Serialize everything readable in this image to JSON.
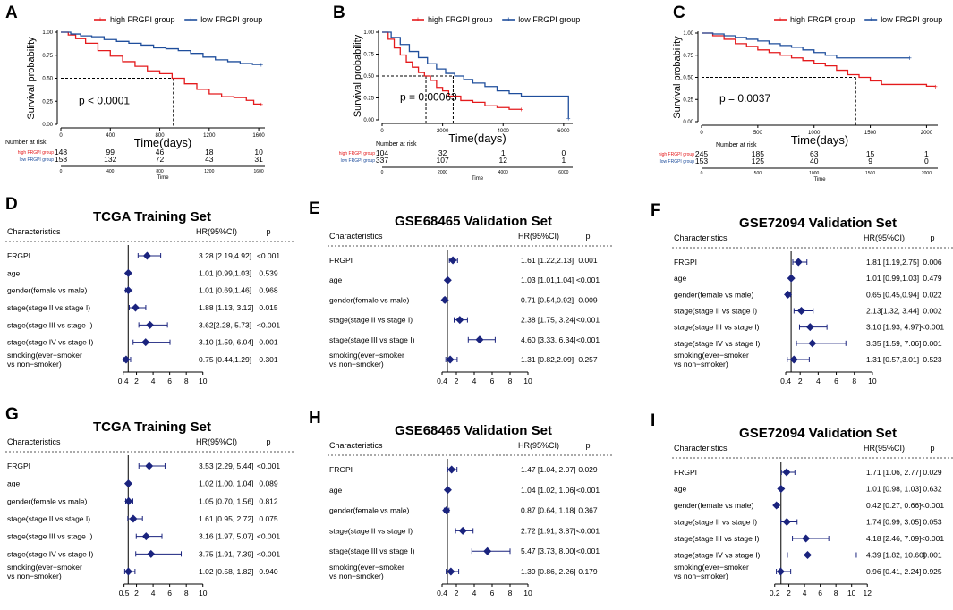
{
  "colors": {
    "high": "#e41a1c",
    "low": "#1f4e9c",
    "forest": "#1a237e"
  },
  "chart_data": [
    {
      "id": "A",
      "type": "line",
      "panel_label": "A",
      "legend": [
        "high FRGPI group",
        "low FRGPI group"
      ],
      "ylabel": "Survival probability",
      "xlabel": "Time(days)",
      "xlim": [
        0,
        1650
      ],
      "ylim": [
        0,
        1
      ],
      "xticks": [
        "0",
        "400",
        "800",
        "1200",
        "1600"
      ],
      "yticks": [
        "0.00",
        "0.25",
        "0.50",
        "0.75",
        "1.00"
      ],
      "pvalue": "p < 0.0001",
      "median": 910,
      "series": [
        {
          "name": "high FRGPI group",
          "x": [
            0,
            60,
            120,
            200,
            300,
            400,
            500,
            600,
            700,
            800,
            900,
            1000,
            1100,
            1200,
            1300,
            1400,
            1500,
            1560,
            1620
          ],
          "y": [
            1,
            0.97,
            0.93,
            0.88,
            0.8,
            0.74,
            0.68,
            0.63,
            0.58,
            0.55,
            0.5,
            0.44,
            0.38,
            0.33,
            0.3,
            0.29,
            0.26,
            0.22,
            0.22
          ]
        },
        {
          "name": "low FRGPI group",
          "x": [
            0,
            80,
            160,
            250,
            350,
            450,
            550,
            650,
            750,
            850,
            950,
            1050,
            1150,
            1250,
            1350,
            1450,
            1550,
            1620
          ],
          "y": [
            1,
            0.98,
            0.96,
            0.95,
            0.92,
            0.9,
            0.88,
            0.86,
            0.83,
            0.82,
            0.8,
            0.77,
            0.73,
            0.7,
            0.68,
            0.66,
            0.65,
            0.65
          ]
        }
      ],
      "risk_title": "Number at risk",
      "risk_xlabel": "Time",
      "risk_xticks": [
        "0",
        "400",
        "800",
        "1200",
        "1600"
      ],
      "risk_rows": [
        {
          "label": "high FRGPI group",
          "values": [
            "148",
            "99",
            "46",
            "18",
            "10"
          ]
        },
        {
          "label": "low FRGPI group",
          "values": [
            "158",
            "132",
            "72",
            "43",
            "31"
          ]
        }
      ]
    },
    {
      "id": "B",
      "type": "line",
      "panel_label": "B",
      "legend": [
        "high FRGPI group",
        "low FRGPI group"
      ],
      "ylabel": "Survival probability",
      "xlabel": "Time(days)",
      "xlim": [
        0,
        6300
      ],
      "ylim": [
        0,
        1
      ],
      "xticks": [
        "0",
        "2000",
        "4000",
        "6000"
      ],
      "yticks": [
        "0.00",
        "0.25",
        "0.50",
        "0.75",
        "1.00"
      ],
      "pvalue": "p = 0.00063",
      "median": 1450,
      "median2": 2350,
      "series": [
        {
          "name": "high FRGPI group",
          "x": [
            0,
            200,
            400,
            600,
            800,
            1000,
            1200,
            1400,
            1600,
            1800,
            2000,
            2200,
            2600,
            3000,
            3400,
            3800,
            4200,
            4600
          ],
          "y": [
            1,
            0.92,
            0.82,
            0.74,
            0.66,
            0.6,
            0.54,
            0.5,
            0.45,
            0.37,
            0.33,
            0.27,
            0.22,
            0.2,
            0.16,
            0.14,
            0.12,
            0.12
          ]
        },
        {
          "name": "low FRGPI group",
          "x": [
            0,
            300,
            600,
            900,
            1200,
            1500,
            1800,
            2100,
            2400,
            2700,
            3000,
            3400,
            3800,
            4200,
            4600,
            5000,
            5500,
            6000,
            6150,
            6160
          ],
          "y": [
            1,
            0.94,
            0.86,
            0.78,
            0.71,
            0.64,
            0.58,
            0.53,
            0.5,
            0.46,
            0.42,
            0.38,
            0.33,
            0.3,
            0.27,
            0.27,
            0.27,
            0.27,
            0.27,
            0.02
          ]
        }
      ],
      "risk_title": "Number at risk",
      "risk_xlabel": "Time",
      "risk_xticks": [
        "0",
        "2000",
        "4000",
        "6000"
      ],
      "risk_rows": [
        {
          "label": "high FRGPI group",
          "values": [
            "104",
            "32",
            "1",
            "0"
          ]
        },
        {
          "label": "low FRGPI group",
          "values": [
            "337",
            "107",
            "12",
            "1"
          ]
        }
      ]
    },
    {
      "id": "C",
      "type": "line",
      "panel_label": "C",
      "legend": [
        "high FRGPI group",
        "low FRGPI group"
      ],
      "ylabel": "Survival probability",
      "xlabel": "Time(days)",
      "xlim": [
        0,
        2100
      ],
      "ylim": [
        0,
        1
      ],
      "xticks": [
        "0",
        "500",
        "1000",
        "1500",
        "2000"
      ],
      "yticks": [
        "0.00",
        "0.25",
        "0.50",
        "0.75",
        "1.00"
      ],
      "pvalue": "p = 0.0037",
      "median": 1370,
      "series": [
        {
          "name": "high FRGPI group",
          "x": [
            0,
            100,
            200,
            300,
            400,
            500,
            600,
            700,
            800,
            900,
            1000,
            1100,
            1200,
            1300,
            1400,
            1500,
            1600,
            1800,
            2000,
            2080
          ],
          "y": [
            1,
            0.97,
            0.93,
            0.88,
            0.85,
            0.81,
            0.78,
            0.75,
            0.72,
            0.69,
            0.66,
            0.63,
            0.58,
            0.53,
            0.5,
            0.46,
            0.42,
            0.42,
            0.4,
            0.4
          ]
        },
        {
          "name": "low FRGPI group",
          "x": [
            0,
            100,
            200,
            300,
            400,
            500,
            600,
            700,
            800,
            900,
            1000,
            1100,
            1200,
            1400,
            1600,
            1800,
            1850
          ],
          "y": [
            1,
            0.99,
            0.97,
            0.95,
            0.93,
            0.91,
            0.88,
            0.86,
            0.84,
            0.81,
            0.78,
            0.75,
            0.72,
            0.72,
            0.72,
            0.72,
            0.72
          ]
        }
      ],
      "risk_title": "Number at risk",
      "risk_xlabel": "Time",
      "risk_xticks": [
        "0",
        "500",
        "1000",
        "1500",
        "2000"
      ],
      "risk_rows": [
        {
          "label": "high FRGPI group",
          "values": [
            "245",
            "185",
            "63",
            "15",
            "1"
          ]
        },
        {
          "label": "low FRGPI group",
          "values": [
            "153",
            "125",
            "40",
            "9",
            "0"
          ]
        }
      ]
    },
    {
      "id": "D",
      "type": "forest",
      "panel_label": "D",
      "title": "TCGA Training Set",
      "headers": [
        "Characteristics",
        "HR(95%CI)",
        "p"
      ],
      "xlim": [
        0,
        11
      ],
      "ticks": [
        0.4,
        2,
        4,
        6,
        8,
        10
      ],
      "tick_labels": [
        "0.4",
        "2",
        "4",
        "6",
        "8",
        "10"
      ],
      "rows": [
        {
          "label": "FRGPI",
          "hr": 3.28,
          "lo": 2.19,
          "hi": 4.92,
          "hrci": "3.28 [2.19,4.92]",
          "p": "<0.001"
        },
        {
          "label": "age",
          "hr": 1.01,
          "lo": 0.99,
          "hi": 1.03,
          "hrci": "1.01 [0.99,1.03]",
          "p": "0.539"
        },
        {
          "label": "gender(female vs male)",
          "hr": 1.01,
          "lo": 0.69,
          "hi": 1.46,
          "hrci": "1.01 [0.69,1.46]",
          "p": "0.968"
        },
        {
          "label": "stage(stage II vs stage I)",
          "hr": 1.88,
          "lo": 1.13,
          "hi": 3.12,
          "hrci": "1.88 [1.13, 3.12]",
          "p": "0.015"
        },
        {
          "label": "stage(stage III vs stage I)",
          "hr": 3.62,
          "lo": 2.28,
          "hi": 5.73,
          "hrci": "3.62[2.28, 5.73]",
          "p": "<0.001"
        },
        {
          "label": "stage(stage IV vs stage I)",
          "hr": 3.1,
          "lo": 1.59,
          "hi": 6.04,
          "hrci": "3.10 [1.59, 6.04]",
          "p": "0.001"
        },
        {
          "label": "smoking(ever−smoker",
          "label2": "vs non−smoker)",
          "hr": 0.75,
          "lo": 0.44,
          "hi": 1.29,
          "hrci": "0.75 [0.44,1.29]",
          "p": "0.301"
        }
      ]
    },
    {
      "id": "E",
      "type": "forest",
      "panel_label": "E",
      "title": "GSE68465 Validation Set",
      "headers": [
        "Characteristics",
        "HR(95%CI)",
        "p"
      ],
      "xlim": [
        0,
        11
      ],
      "ticks": [
        0.4,
        2,
        4,
        6,
        8,
        10
      ],
      "tick_labels": [
        "0.4",
        "2",
        "4",
        "6",
        "8",
        "10"
      ],
      "rows": [
        {
          "label": "FRGPI",
          "hr": 1.61,
          "lo": 1.22,
          "hi": 2.13,
          "hrci": "1.61 [1.22,2.13]",
          "p": "0.001"
        },
        {
          "label": "age",
          "hr": 1.03,
          "lo": 1.01,
          "hi": 1.04,
          "hrci": "1.03 [1.01,1.04]",
          "p": "<0.001"
        },
        {
          "label": "gender(female vs male)",
          "hr": 0.71,
          "lo": 0.54,
          "hi": 0.92,
          "hrci": "0.71 [0.54,0.92]",
          "p": "0.009"
        },
        {
          "label": "stage(stage II vs stage I)",
          "hr": 2.38,
          "lo": 1.75,
          "hi": 3.24,
          "hrci": "2.38 [1.75, 3.24]",
          "p": "<0.001"
        },
        {
          "label": "stage(stage III vs stage I)",
          "hr": 4.6,
          "lo": 3.33,
          "hi": 6.34,
          "hrci": "4.60 [3.33, 6.34]",
          "p": "<0.001"
        },
        {
          "label": "smoking(ever−smoker",
          "label2": "vs non−smoker)",
          "hr": 1.31,
          "lo": 0.82,
          "hi": 2.09,
          "hrci": "1.31 [0.82,2.09]",
          "p": "0.257"
        }
      ]
    },
    {
      "id": "F",
      "type": "forest",
      "panel_label": "F",
      "title": "GSE72094 Validation Set",
      "headers": [
        "Characteristics",
        "HR(95%CI)",
        "p"
      ],
      "xlim": [
        0,
        11
      ],
      "ticks": [
        0.4,
        2,
        4,
        6,
        8,
        10
      ],
      "tick_labels": [
        "0.4",
        "2",
        "4",
        "6",
        "8",
        "10"
      ],
      "rows": [
        {
          "label": "FRGPI",
          "hr": 1.81,
          "lo": 1.19,
          "hi": 2.75,
          "hrci": "1.81 [1.19,2.75]",
          "p": "0.006"
        },
        {
          "label": "age",
          "hr": 1.01,
          "lo": 0.99,
          "hi": 1.03,
          "hrci": "1.01 [0.99,1.03]",
          "p": "0.479"
        },
        {
          "label": "gender(female vs male)",
          "hr": 0.65,
          "lo": 0.45,
          "hi": 0.94,
          "hrci": "0.65 [0.45,0.94]",
          "p": "0.022"
        },
        {
          "label": "stage(stage II vs stage I)",
          "hr": 2.13,
          "lo": 1.32,
          "hi": 3.44,
          "hrci": "2.13[1.32, 3.44]",
          "p": "0.002"
        },
        {
          "label": "stage(stage III vs stage I)",
          "hr": 3.1,
          "lo": 1.93,
          "hi": 4.97,
          "hrci": "3.10 [1.93, 4.97]",
          "p": "<0.001"
        },
        {
          "label": "stage(stage IV vs stage I)",
          "hr": 3.35,
          "lo": 1.59,
          "hi": 7.06,
          "hrci": "3.35 [1.59, 7.06]",
          "p": "0.001"
        },
        {
          "label": "smoking(ever−smoker",
          "label2": "vs non−smoker)",
          "hr": 1.31,
          "lo": 0.57,
          "hi": 3.01,
          "hrci": "1.31 [0.57,3.01]",
          "p": "0.523"
        }
      ]
    },
    {
      "id": "G",
      "type": "forest",
      "panel_label": "G",
      "title": "TCGA Training Set",
      "headers": [
        "Characteristics",
        "HR(95%CI)",
        "p"
      ],
      "xlim": [
        0,
        11
      ],
      "ticks": [
        0.5,
        2,
        4,
        6,
        8,
        10
      ],
      "tick_labels": [
        "0.5",
        "2",
        "4",
        "6",
        "8",
        "10"
      ],
      "rows": [
        {
          "label": "FRGPI",
          "hr": 3.53,
          "lo": 2.29,
          "hi": 5.44,
          "hrci": "3.53 [2.29, 5.44]",
          "p": "<0.001"
        },
        {
          "label": "age",
          "hr": 1.02,
          "lo": 1.0,
          "hi": 1.04,
          "hrci": "1.02 [1.00, 1.04]",
          "p": "0.089"
        },
        {
          "label": "gender(female vs male)",
          "hr": 1.05,
          "lo": 0.7,
          "hi": 1.56,
          "hrci": "1.05 [0.70, 1.56]",
          "p": "0.812"
        },
        {
          "label": "stage(stage II vs stage I)",
          "hr": 1.61,
          "lo": 0.95,
          "hi": 2.72,
          "hrci": "1.61 [0.95, 2.72]",
          "p": "0.075"
        },
        {
          "label": "stage(stage III vs stage I)",
          "hr": 3.16,
          "lo": 1.97,
          "hi": 5.07,
          "hrci": "3.16 [1.97, 5.07]",
          "p": "<0.001"
        },
        {
          "label": "stage(stage IV vs stage I)",
          "hr": 3.75,
          "lo": 1.91,
          "hi": 7.39,
          "hrci": "3.75 [1.91, 7.39]",
          "p": "<0.001"
        },
        {
          "label": "smoking(ever−smoker",
          "label2": "vs non−smoker)",
          "hr": 1.02,
          "lo": 0.58,
          "hi": 1.82,
          "hrci": "1.02 [0.58, 1.82]",
          "p": "0.940"
        }
      ]
    },
    {
      "id": "H",
      "type": "forest",
      "panel_label": "H",
      "title": "GSE68465 Validation Set",
      "headers": [
        "Characteristics",
        "HR(95%CI)",
        "p"
      ],
      "xlim": [
        0,
        11
      ],
      "ticks": [
        0.4,
        2,
        4,
        6,
        8,
        10
      ],
      "tick_labels": [
        "0.4",
        "2",
        "4",
        "6",
        "8",
        "10"
      ],
      "rows": [
        {
          "label": "FRGPI",
          "hr": 1.47,
          "lo": 1.04,
          "hi": 2.07,
          "hrci": "1.47 [1.04, 2.07]",
          "p": "0.029"
        },
        {
          "label": "age",
          "hr": 1.04,
          "lo": 1.02,
          "hi": 1.06,
          "hrci": "1.04 [1.02, 1.06]",
          "p": "<0.001"
        },
        {
          "label": "gender(female vs male)",
          "hr": 0.87,
          "lo": 0.64,
          "hi": 1.18,
          "hrci": "0.87 [0.64, 1.18]",
          "p": "0.367"
        },
        {
          "label": "stage(stage II vs stage I)",
          "hr": 2.72,
          "lo": 1.91,
          "hi": 3.87,
          "hrci": "2.72 [1.91, 3.87]",
          "p": "<0.001"
        },
        {
          "label": "stage(stage III vs stage I)",
          "hr": 5.47,
          "lo": 3.73,
          "hi": 8.0,
          "hrci": "5.47 [3.73, 8.00]",
          "p": "<0.001"
        },
        {
          "label": "smoking(ever−smoker",
          "label2": "vs non−smoker)",
          "hr": 1.39,
          "lo": 0.86,
          "hi": 2.26,
          "hrci": "1.39 [0.86, 2.26]",
          "p": "0.179"
        }
      ]
    },
    {
      "id": "I",
      "type": "forest",
      "panel_label": "I",
      "title": "GSE72094 Validation Set",
      "headers": [
        "Characteristics",
        "HR(95%CI)",
        "p"
      ],
      "xlim": [
        0,
        13
      ],
      "ticks": [
        0.2,
        2,
        4,
        6,
        8,
        10,
        12
      ],
      "tick_labels": [
        "0.2",
        "2",
        "4",
        "6",
        "8",
        "10",
        "12"
      ],
      "rows": [
        {
          "label": "FRGPI",
          "hr": 1.71,
          "lo": 1.06,
          "hi": 2.77,
          "hrci": "1.71 [1.06, 2.77]",
          "p": "0.029"
        },
        {
          "label": "age",
          "hr": 1.01,
          "lo": 0.98,
          "hi": 1.03,
          "hrci": "1.01 [0.98, 1.03]",
          "p": "0.632"
        },
        {
          "label": "gender(female vs male)",
          "hr": 0.42,
          "lo": 0.27,
          "hi": 0.66,
          "hrci": "0.42 [0.27, 0.66]",
          "p": "<0.001"
        },
        {
          "label": "stage(stage II vs stage I)",
          "hr": 1.74,
          "lo": 0.99,
          "hi": 3.05,
          "hrci": "1.74 [0.99, 3.05]",
          "p": "0.053"
        },
        {
          "label": "stage(stage III vs stage I)",
          "hr": 4.18,
          "lo": 2.46,
          "hi": 7.09,
          "hrci": "4.18 [2.46, 7.09]",
          "p": "<0.001"
        },
        {
          "label": "stage(stage IV vs stage I)",
          "hr": 4.39,
          "lo": 1.82,
          "hi": 10.6,
          "hrci": "4.39 [1.82, 10.60]",
          "p": "0.001"
        },
        {
          "label": "smoking(ever−smoker",
          "label2": "vs non−smoker)",
          "hr": 0.96,
          "lo": 0.41,
          "hi": 2.24,
          "hrci": "0.96 [0.41, 2.24]",
          "p": "0.925"
        }
      ]
    }
  ]
}
